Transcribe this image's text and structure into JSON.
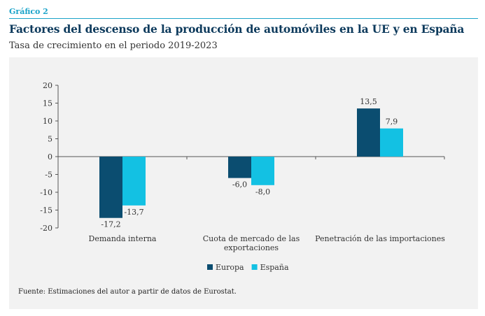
{
  "header": {
    "label": "Gráfico 2",
    "title": "Factores del descenso de la producción de automóviles en la UE y en España",
    "subtitle": "Tasa de crecimiento en el periodo 2019-2023"
  },
  "source": "Fuente: Estimaciones del autor a partir de datos de Eurostat.",
  "colors": {
    "europa": "#0b4d70",
    "espana": "#13c1e3"
  },
  "chart_data": {
    "type": "bar",
    "categories": [
      "Demanda interna",
      "Cuota de mercado de las exportaciones",
      "Penetración de las importaciones"
    ],
    "category_lines": [
      [
        "Demanda interna"
      ],
      [
        "Cuota de mercado de las",
        "exportaciones"
      ],
      [
        "Penetración de las importaciones"
      ]
    ],
    "series": [
      {
        "name": "Europa",
        "values": [
          -17.2,
          -6.0,
          13.5
        ],
        "labels": [
          "-17,2",
          "-6,0",
          "13,5"
        ]
      },
      {
        "name": "España",
        "values": [
          -13.7,
          -8.0,
          7.9
        ],
        "labels": [
          "-13,7",
          "-8,0",
          "7,9"
        ]
      }
    ],
    "ylim": [
      -20,
      20
    ],
    "yticks": [
      -20,
      -15,
      -10,
      -5,
      0,
      5,
      10,
      15,
      20
    ],
    "legend": "bottom",
    "grid": false
  }
}
